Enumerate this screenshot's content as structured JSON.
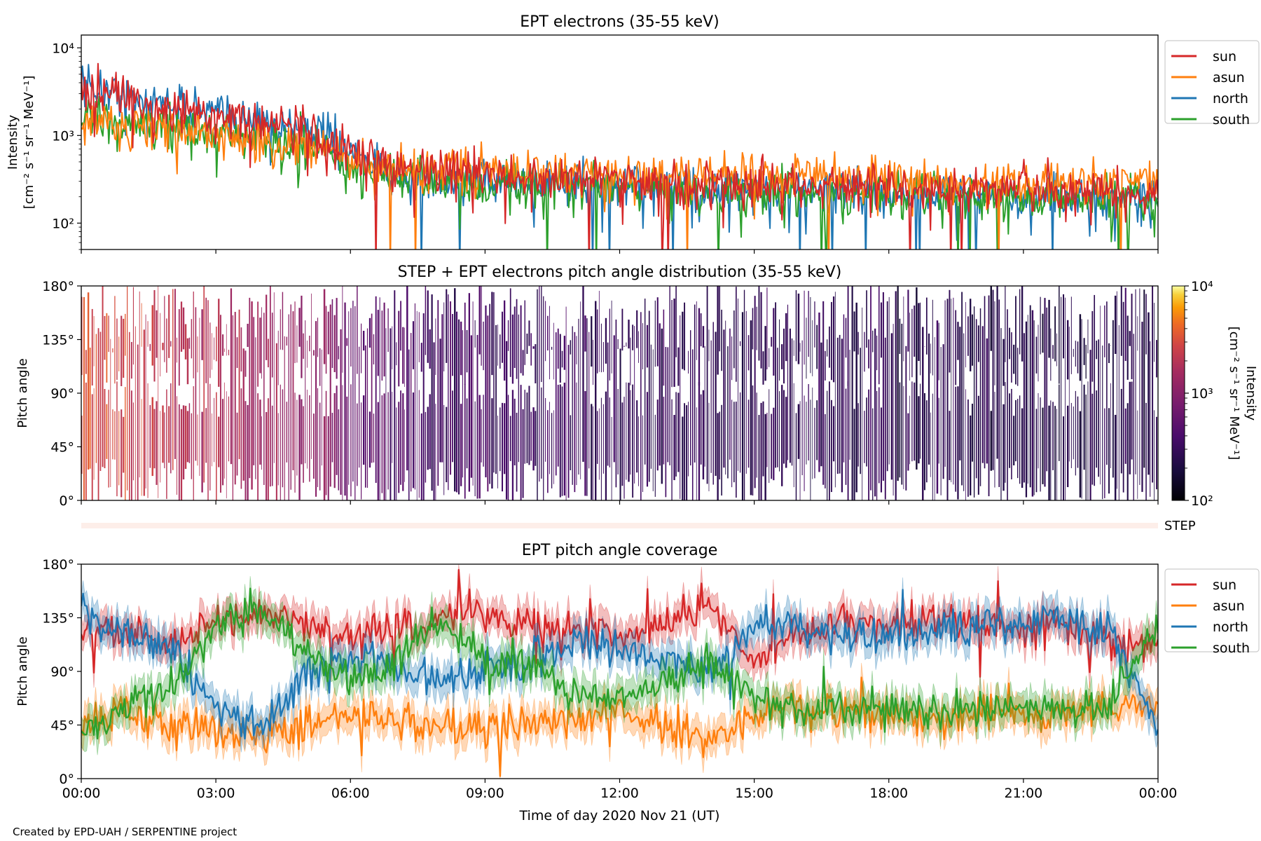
{
  "credit": "Created by EPD-UAH / SERPENTINE project",
  "colors": {
    "sun": "#d62728",
    "asun": "#ff7f0e",
    "north": "#1f77b4",
    "south": "#2ca02c"
  },
  "chart_data": [
    {
      "type": "line",
      "title": "EPT electrons (35-55 keV)",
      "ylabel": [
        "Intensity",
        "[cm⁻² s⁻¹ sr⁻¹ MeV⁻¹]"
      ],
      "yscale": "log",
      "ylim": [
        50,
        14000
      ],
      "yticks": [
        100,
        1000,
        10000
      ],
      "ytick_labels": [
        "10²",
        "10³",
        "10⁴"
      ],
      "xlim": [
        "2020-11-21T00:00",
        "2020-11-22T00:00"
      ],
      "legend": "outside-right",
      "x": [
        "00:00",
        "01:00",
        "02:00",
        "03:00",
        "04:00",
        "05:00",
        "06:00",
        "07:00",
        "08:00",
        "09:00",
        "10:00",
        "11:00",
        "12:00",
        "13:00",
        "14:00",
        "15:00",
        "16:00",
        "17:00",
        "18:00",
        "19:00",
        "20:00",
        "21:00",
        "22:00",
        "23:00",
        "24:00"
      ],
      "series": [
        {
          "name": "sun",
          "values": [
            3500,
            2600,
            2000,
            1700,
            1400,
            1200,
            650,
            420,
            380,
            360,
            340,
            330,
            310,
            300,
            290,
            280,
            270,
            260,
            260,
            250,
            250,
            245,
            240,
            240,
            240
          ]
        },
        {
          "name": "asun",
          "values": [
            1500,
            1400,
            1200,
            1000,
            900,
            800,
            520,
            440,
            420,
            400,
            390,
            380,
            370,
            360,
            350,
            340,
            330,
            320,
            320,
            310,
            300,
            300,
            300,
            300,
            300
          ]
        },
        {
          "name": "north",
          "values": [
            3800,
            3000,
            2300,
            1800,
            1500,
            1250,
            600,
            380,
            320,
            300,
            290,
            280,
            270,
            260,
            250,
            240,
            230,
            220,
            220,
            210,
            210,
            200,
            200,
            200,
            200
          ]
        },
        {
          "name": "south",
          "values": [
            1600,
            1400,
            1300,
            1100,
            950,
            800,
            420,
            320,
            300,
            290,
            280,
            270,
            260,
            250,
            240,
            230,
            220,
            210,
            210,
            200,
            200,
            195,
            190,
            190,
            190
          ]
        }
      ]
    },
    {
      "type": "heatmap",
      "title": "STEP + EPT electrons pitch angle distribution (35-55 keV)",
      "ylabel": "Pitch angle",
      "ylim": [
        0,
        180
      ],
      "yticks": [
        "0°",
        "45°",
        "90°",
        "135°",
        "180°"
      ],
      "xlim": [
        "2020-11-21T00:00",
        "2020-11-22T00:00"
      ],
      "colorbar": {
        "label": [
          "Intensity",
          "[cm⁻² s⁻¹ sr⁻¹ MeV⁻¹]"
        ],
        "scale": "log",
        "range": [
          100,
          10000
        ],
        "tick_labels": [
          "10²",
          "10³",
          "10⁴"
        ],
        "colormap": "inferno"
      },
      "x": [
        "00:00",
        "01:00",
        "02:00",
        "03:00",
        "04:00",
        "05:00",
        "06:00",
        "07:00",
        "08:00",
        "09:00",
        "10:00",
        "11:00",
        "12:00",
        "13:00",
        "14:00",
        "15:00",
        "16:00",
        "17:00",
        "18:00",
        "19:00",
        "20:00",
        "21:00",
        "22:00",
        "23:00",
        "24:00"
      ],
      "intensity": [
        3500,
        2600,
        2000,
        1700,
        1400,
        1200,
        650,
        420,
        380,
        360,
        340,
        330,
        310,
        300,
        290,
        280,
        270,
        260,
        260,
        250,
        250,
        245,
        240,
        240,
        240
      ]
    },
    {
      "type": "bar",
      "label": "STEP",
      "xlim": [
        "2020-11-21T00:00",
        "2020-11-22T00:00"
      ]
    },
    {
      "type": "area",
      "title": "EPT pitch angle coverage",
      "ylabel": "Pitch angle",
      "xlabel": "Time of day 2020 Nov 21 (UT)",
      "ylim": [
        0,
        180
      ],
      "yticks": [
        "0°",
        "45°",
        "90°",
        "135°",
        "180°"
      ],
      "xticks": [
        "00:00",
        "03:00",
        "06:00",
        "09:00",
        "12:00",
        "15:00",
        "18:00",
        "21:00",
        "00:00"
      ],
      "xlim": [
        "2020-11-21T00:00",
        "2020-11-22T00:00"
      ],
      "legend": "outside-right",
      "x": [
        "00:00",
        "01:00",
        "02:00",
        "03:00",
        "04:00",
        "05:00",
        "06:00",
        "07:00",
        "08:00",
        "09:00",
        "10:00",
        "11:00",
        "12:00",
        "13:00",
        "14:00",
        "15:00",
        "16:00",
        "17:00",
        "18:00",
        "19:00",
        "20:00",
        "21:00",
        "22:00",
        "23:00",
        "24:00"
      ],
      "series": [
        {
          "name": "sun",
          "values": [
            125,
            120,
            115,
            130,
            140,
            130,
            120,
            125,
            135,
            140,
            130,
            125,
            120,
            130,
            145,
            100,
            125,
            130,
            130,
            135,
            130,
            125,
            130,
            115,
            115
          ]
        },
        {
          "name": "asun",
          "values": [
            50,
            55,
            45,
            40,
            35,
            45,
            55,
            50,
            40,
            40,
            45,
            50,
            55,
            45,
            30,
            55,
            60,
            55,
            55,
            50,
            55,
            55,
            55,
            60,
            60
          ]
        },
        {
          "name": "north",
          "values": [
            135,
            125,
            110,
            60,
            40,
            85,
            100,
            95,
            80,
            90,
            100,
            115,
            110,
            100,
            90,
            130,
            130,
            120,
            115,
            125,
            130,
            130,
            135,
            120,
            40
          ]
        },
        {
          "name": "south",
          "values": [
            40,
            60,
            75,
            130,
            140,
            110,
            80,
            100,
            135,
            100,
            95,
            70,
            70,
            80,
            100,
            65,
            55,
            60,
            60,
            55,
            55,
            60,
            55,
            60,
            135
          ]
        }
      ]
    }
  ]
}
